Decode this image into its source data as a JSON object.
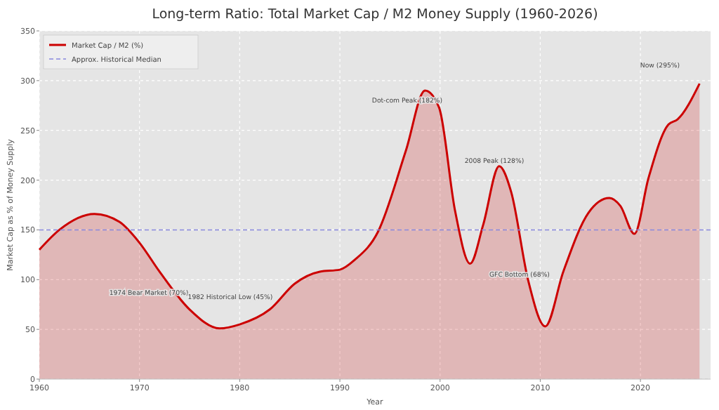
{
  "chart_data": {
    "type": "area",
    "title": "Long-term Ratio: Total Market Cap / M2 Money Supply (1960-2026)",
    "xlabel": "Year",
    "ylabel": "Market Cap as % of Money Supply",
    "series": [
      {
        "name": "Market Cap / M2 (%)",
        "color": "#cc0000",
        "x": [
          1960,
          1962,
          1965.5,
          1968,
          1970,
          1972,
          1975,
          1978,
          1980,
          1983,
          1985.5,
          1988,
          1990,
          1991.5,
          1993.8,
          1996.6,
          1998.5,
          1999.9,
          2001.5,
          2003,
          2004.3,
          2005.9,
          2007.1,
          2008.8,
          2010.5,
          2012.3,
          2014.8,
          2016.9,
          2018,
          2019.4,
          2020.8,
          2022.8,
          2023.7,
          2025.9
        ],
        "values": [
          130,
          150,
          166,
          158,
          137,
          108,
          70,
          51,
          55,
          70,
          96,
          108,
          110,
          120,
          148,
          230,
          290,
          273,
          169,
          116,
          155,
          214,
          188,
          99,
          53,
          108,
          167,
          182,
          174,
          146,
          202,
          256,
          261,
          297
        ]
      }
    ],
    "ref_lines": [
      {
        "axis": "y",
        "value": 150,
        "label": "Approx. Historical Median",
        "color": "#8888dd",
        "line_style": "dashed"
      }
    ],
    "annotations": [
      "1974 Bear Market (70%)",
      "1982 Historical Low (45%)",
      "Dot-com Peak (182%)",
      "2008 Peak (128%)",
      "GFC Bottom (68%)",
      "Now (295%)"
    ],
    "xlim": [
      1960,
      2027
    ],
    "ylim": [
      0,
      350
    ],
    "xticks": [
      1960,
      1970,
      1980,
      1990,
      2000,
      2010,
      2020
    ],
    "yticks": [
      0,
      50,
      100,
      150,
      200,
      250,
      300,
      350
    ],
    "grid": true,
    "legend": "top left"
  }
}
